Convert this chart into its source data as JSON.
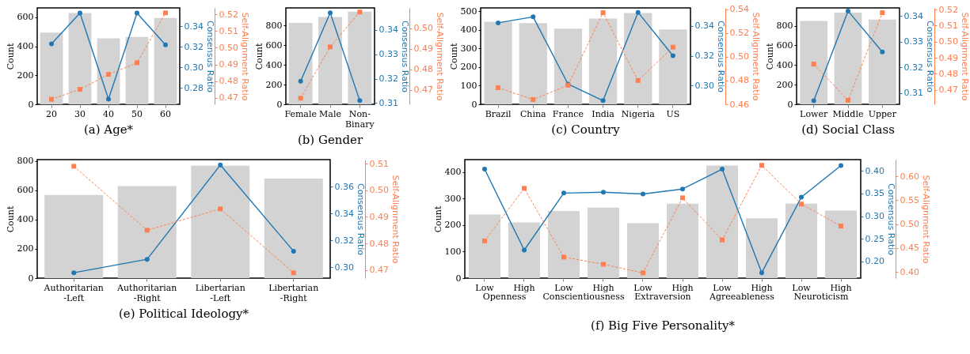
{
  "chart_data": [
    {
      "type": "bar",
      "title": "(a) Age*",
      "categories": [
        "20",
        "30",
        "40",
        "50",
        "60"
      ],
      "ylabel": "Count",
      "y2label": "Consensus Ratio",
      "y3label": "Self-Alignment Ratio",
      "ylim": [
        0,
        665
      ],
      "yticks": [
        0,
        200,
        400,
        600
      ],
      "y2lim": [
        0.264,
        0.358
      ],
      "y2ticks": [
        0.28,
        {
          "value": 0.3,
          "label": "0.30"
        },
        0.32,
        0.34
      ],
      "y3lim": [
        0.466,
        0.524
      ],
      "y3ticks": [
        0.47,
        0.48,
        0.49,
        {
          "value": 0.5,
          "label": "0.50"
        },
        0.51,
        0.52
      ],
      "series": [
        {
          "color": "#d3d3d3",
          "values": [
            495,
            630,
            455,
            465,
            595
          ]
        },
        {
          "type": "line",
          "axis": "y2",
          "color": "#1f77b4",
          "marker": "circle",
          "line_style": "solid",
          "values": [
            0.323,
            0.353,
            0.269,
            0.353,
            0.322
          ]
        },
        {
          "type": "line",
          "axis": "y3",
          "color": "#ff7f50",
          "marker": "square",
          "line_style": "dashed",
          "values": [
            0.469,
            0.475,
            0.484,
            0.491,
            0.521
          ]
        }
      ]
    },
    {
      "type": "bar",
      "title": "(b) Gender",
      "categories": [
        "Female",
        "Male",
        "Non-\nBinary"
      ],
      "ylabel": "Count",
      "y2label": "Consensus Ratio",
      "y3label": "Self-Alignment Ratio",
      "ylim": [
        0,
        978
      ],
      "yticks": [
        0,
        200,
        400,
        600,
        800
      ],
      "y2lim": [
        0.3095,
        0.349
      ],
      "y2ticks": [
        0.31,
        0.32,
        0.33,
        0.34
      ],
      "y3lim": [
        0.463,
        0.51
      ],
      "y3ticks": [
        0.47,
        0.48,
        0.49,
        {
          "value": 0.5,
          "label": "0.50"
        }
      ],
      "series": [
        {
          "color": "#d3d3d3",
          "values": [
            825,
            885,
            940
          ]
        },
        {
          "type": "line",
          "axis": "y2",
          "color": "#1f77b4",
          "marker": "circle",
          "line_style": "solid",
          "values": [
            0.319,
            0.347,
            0.311
          ]
        },
        {
          "type": "line",
          "axis": "y3",
          "color": "#ff7f50",
          "marker": "square",
          "line_style": "dashed",
          "values": [
            0.466,
            0.491,
            0.508
          ]
        }
      ]
    },
    {
      "type": "bar",
      "title": "(c) Country",
      "categories": [
        "Brazil",
        "China",
        "France",
        "India",
        "Nigeria",
        "US"
      ],
      "ylabel": "Count",
      "y2label": "Consensus Ratio",
      "y3label": "Self-Alignment Ratio",
      "ylim": [
        0,
        517
      ],
      "yticks": [
        0,
        100,
        200,
        300,
        400,
        500
      ],
      "y2lim": [
        0.2875,
        0.352
      ],
      "y2ticks": [
        {
          "value": 0.3,
          "label": "0.30"
        },
        0.32,
        0.34
      ],
      "y3lim": [
        0.46,
        0.541
      ],
      "y3ticks": [
        0.46,
        0.48,
        {
          "value": 0.5,
          "label": "0.50"
        },
        0.52,
        0.54
      ],
      "series": [
        {
          "color": "#d3d3d3",
          "values": [
            443,
            435,
            406,
            460,
            489,
            401
          ]
        },
        {
          "type": "line",
          "axis": "y2",
          "color": "#1f77b4",
          "marker": "circle",
          "line_style": "solid",
          "values": [
            0.342,
            0.346,
            0.301,
            0.29,
            0.349,
            0.32
          ]
        },
        {
          "type": "line",
          "axis": "y3",
          "color": "#ff7f50",
          "marker": "square",
          "line_style": "dashed",
          "values": [
            0.474,
            0.464,
            0.476,
            0.537,
            0.48,
            0.508
          ]
        }
      ]
    },
    {
      "type": "bar",
      "title": "(d) Social Class",
      "categories": [
        "Lower",
        "Middle",
        "Upper"
      ],
      "ylabel": "Count",
      "y2label": "Consensus Ratio",
      "y3label": "Self-Alignment Ratio",
      "ylim": [
        0,
        981
      ],
      "yticks": [
        0,
        200,
        400,
        600,
        800
      ],
      "y2lim": [
        0.3056,
        0.3432
      ],
      "y2ticks": [
        0.31,
        0.32,
        0.33,
        0.34
      ],
      "y3lim": [
        0.461,
        0.521
      ],
      "y3ticks": [
        0.47,
        0.48,
        0.49,
        {
          "value": 0.5,
          "label": "0.50"
        },
        0.51,
        0.52
      ],
      "series": [
        {
          "color": "#d3d3d3",
          "values": [
            848,
            933,
            862
          ]
        },
        {
          "type": "line",
          "axis": "y2",
          "color": "#1f77b4",
          "marker": "circle",
          "line_style": "solid",
          "values": [
            0.307,
            0.342,
            0.326
          ]
        },
        {
          "type": "line",
          "axis": "y3",
          "color": "#ff7f50",
          "marker": "square",
          "line_style": "dashed",
          "values": [
            0.486,
            0.4635,
            0.518
          ]
        }
      ]
    },
    {
      "type": "bar",
      "title": "(e) Political Ideology*",
      "categories": [
        "Authoritarian\n-Left",
        "Authoritarian\n-Right",
        "Libertarian\n-Left",
        "Libertarian\n-Right"
      ],
      "ylabel": "Count",
      "y2label": "Consensus Ratio",
      "y3label": "Self-Alignment Ratio",
      "ylim": [
        0,
        809
      ],
      "yticks": [
        0,
        200,
        400,
        600,
        800
      ],
      "y2lim": [
        0.292,
        0.38
      ],
      "y2ticks": [
        {
          "value": 0.3,
          "label": "0.30"
        },
        0.32,
        0.34,
        0.36
      ],
      "y3lim": [
        0.467,
        0.5115
      ],
      "y3ticks": [
        0.47,
        0.48,
        0.49,
        {
          "value": 0.5,
          "label": "0.50"
        },
        0.51
      ],
      "series": [
        {
          "color": "#d3d3d3",
          "values": [
            567,
            628,
            767,
            680
          ]
        },
        {
          "type": "line",
          "axis": "y2",
          "color": "#1f77b4",
          "marker": "circle",
          "line_style": "solid",
          "values": [
            0.296,
            0.306,
            0.376,
            0.312
          ]
        },
        {
          "type": "line",
          "axis": "y3",
          "color": "#ff7f50",
          "marker": "square",
          "line_style": "dashed",
          "values": [
            0.509,
            0.485,
            0.493,
            0.469
          ]
        }
      ]
    },
    {
      "type": "bar",
      "title": "(f) Big Five Personality*",
      "categories": [
        "Low",
        "High",
        "Low",
        "High",
        "Low",
        "High",
        "Low",
        "High",
        "Low",
        "High"
      ],
      "annotations": [
        "Openness",
        "Conscientiousness",
        "Extraversion",
        "Agreeableness",
        "Neuroticism"
      ],
      "ylabel": "Count",
      "y2label": "Consensus Ratio",
      "y3label": "Self-Alignment Ratio",
      "ylim": [
        0,
        447
      ],
      "yticks": [
        0,
        100,
        200,
        300,
        400
      ],
      "y2lim": [
        0.163,
        0.425
      ],
      "y2ticks": [
        {
          "value": 0.2,
          "label": "0.20"
        },
        0.25,
        {
          "value": 0.3,
          "label": "0.30"
        },
        0.35,
        {
          "value": 0.4,
          "label": "0.40"
        }
      ],
      "y3lim": [
        0.387,
        0.635
      ],
      "y3ticks": [
        {
          "value": 0.4,
          "label": "0.40"
        },
        0.45,
        {
          "value": 0.5,
          "label": "0.50"
        },
        0.55,
        {
          "value": 0.6,
          "label": "0.60"
        }
      ],
      "series": [
        {
          "color": "#d3d3d3",
          "values": [
            240,
            210,
            253,
            266,
            207,
            281,
            425,
            226,
            281,
            255
          ]
        },
        {
          "type": "line",
          "axis": "y2",
          "color": "#1f77b4",
          "marker": "circle",
          "line_style": "solid",
          "values": [
            0.404,
            0.225,
            0.351,
            0.353,
            0.349,
            0.36,
            0.404,
            0.175,
            0.342,
            0.412
          ]
        },
        {
          "type": "line",
          "axis": "y3",
          "color": "#ff7f50",
          "marker": "square",
          "line_style": "dashed",
          "values": [
            0.465,
            0.575,
            0.431,
            0.416,
            0.398,
            0.555,
            0.467,
            0.623,
            0.542,
            0.496
          ]
        }
      ]
    }
  ]
}
